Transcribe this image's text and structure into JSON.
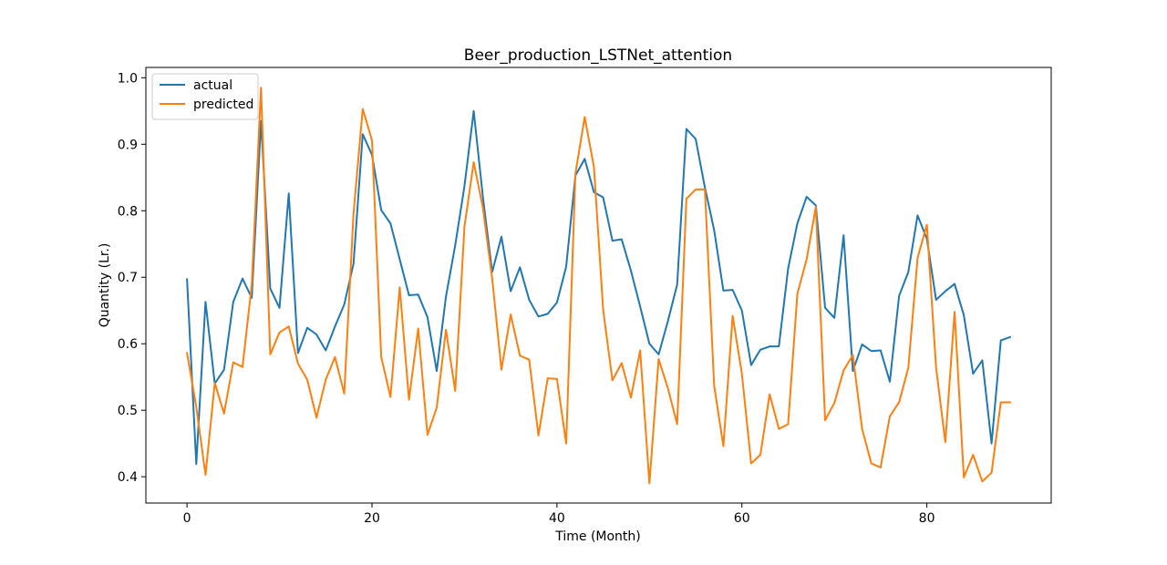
{
  "chart_data": {
    "type": "line",
    "title": "Beer_production_LSTNet_attention",
    "xlabel": "Time (Month)",
    "ylabel": "Quantity (Lr.)",
    "xlim": [
      -4.45,
      93.45
    ],
    "ylim": [
      0.3605,
      1.0155
    ],
    "xticks": [
      0,
      20,
      40,
      60,
      80
    ],
    "yticks": [
      0.4,
      0.5,
      0.6,
      0.7,
      0.8,
      0.9,
      1.0
    ],
    "xtick_labels": [
      "0",
      "20",
      "40",
      "60",
      "80"
    ],
    "ytick_labels": [
      "0.4",
      "0.5",
      "0.6",
      "0.7",
      "0.8",
      "0.9",
      "1.0"
    ],
    "grid": false,
    "legend_position": "upper-left",
    "x": [
      0,
      1,
      2,
      3,
      4,
      5,
      6,
      7,
      8,
      9,
      10,
      11,
      12,
      13,
      14,
      15,
      16,
      17,
      18,
      19,
      20,
      21,
      22,
      23,
      24,
      25,
      26,
      27,
      28,
      29,
      30,
      31,
      32,
      33,
      34,
      35,
      36,
      37,
      38,
      39,
      40,
      41,
      42,
      43,
      44,
      45,
      46,
      47,
      48,
      49,
      50,
      51,
      52,
      53,
      54,
      55,
      56,
      57,
      58,
      59,
      60,
      61,
      62,
      63,
      64,
      65,
      66,
      67,
      68,
      69,
      70,
      71,
      72,
      73,
      74,
      75,
      76,
      77,
      78,
      79,
      80,
      81,
      82,
      83,
      84,
      85,
      86,
      87,
      88,
      89
    ],
    "series": [
      {
        "name": "actual",
        "color": "#1f77b4",
        "values": [
          0.697,
          0.419,
          0.663,
          0.54,
          0.561,
          0.663,
          0.698,
          0.669,
          0.935,
          0.683,
          0.654,
          0.826,
          0.586,
          0.624,
          0.614,
          0.59,
          0.626,
          0.659,
          0.72,
          0.915,
          0.884,
          0.801,
          0.781,
          0.727,
          0.673,
          0.674,
          0.64,
          0.559,
          0.671,
          0.748,
          0.837,
          0.95,
          0.82,
          0.708,
          0.761,
          0.679,
          0.715,
          0.666,
          0.641,
          0.645,
          0.662,
          0.716,
          0.853,
          0.878,
          0.828,
          0.82,
          0.755,
          0.757,
          0.71,
          0.656,
          0.6,
          0.584,
          0.634,
          0.689,
          0.923,
          0.908,
          0.835,
          0.771,
          0.68,
          0.681,
          0.65,
          0.568,
          0.591,
          0.596,
          0.596,
          0.713,
          0.781,
          0.821,
          0.808,
          0.654,
          0.639,
          0.763,
          0.559,
          0.599,
          0.589,
          0.59,
          0.543,
          0.672,
          0.708,
          0.793,
          0.758,
          0.666,
          0.679,
          0.69,
          0.643,
          0.555,
          0.575,
          0.45,
          0.605,
          0.61
        ]
      },
      {
        "name": "predicted",
        "color": "#ff7f0e",
        "values": [
          0.586,
          0.505,
          0.403,
          0.541,
          0.495,
          0.572,
          0.565,
          0.689,
          0.985,
          0.584,
          0.617,
          0.626,
          0.57,
          0.546,
          0.489,
          0.546,
          0.58,
          0.525,
          0.795,
          0.953,
          0.906,
          0.58,
          0.52,
          0.685,
          0.516,
          0.623,
          0.463,
          0.504,
          0.621,
          0.529,
          0.776,
          0.873,
          0.804,
          0.698,
          0.561,
          0.644,
          0.582,
          0.576,
          0.462,
          0.548,
          0.547,
          0.45,
          0.856,
          0.941,
          0.866,
          0.651,
          0.545,
          0.571,
          0.519,
          0.59,
          0.39,
          0.577,
          0.533,
          0.479,
          0.818,
          0.832,
          0.832,
          0.537,
          0.446,
          0.642,
          0.555,
          0.42,
          0.433,
          0.524,
          0.472,
          0.479,
          0.675,
          0.727,
          0.806,
          0.485,
          0.511,
          0.56,
          0.583,
          0.472,
          0.42,
          0.414,
          0.491,
          0.512,
          0.564,
          0.729,
          0.779,
          0.564,
          0.452,
          0.648,
          0.399,
          0.433,
          0.393,
          0.406,
          0.512,
          0.512
        ]
      }
    ]
  }
}
